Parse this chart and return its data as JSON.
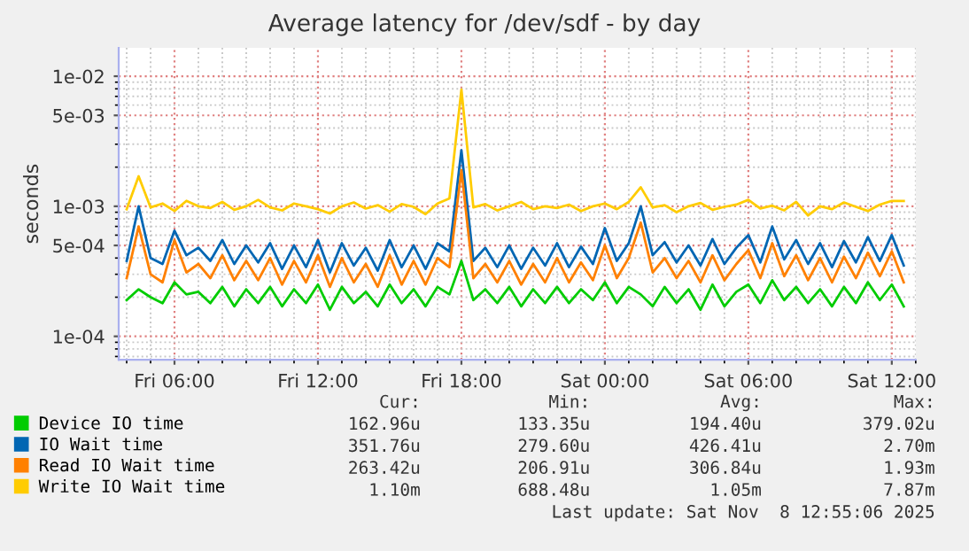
{
  "chart_data": {
    "type": "line",
    "title": "Average latency for /dev/sdf - by day",
    "ylabel": "seconds",
    "log": "y",
    "grid": true,
    "legend": "bottom",
    "marker": "none",
    "line_style": "solid",
    "xlim": [
      "2025-11-07T03:40",
      "2025-11-08T13:00"
    ],
    "xticks": [
      {
        "value": "2025-11-07T06:00",
        "label": "Fri 06:00"
      },
      {
        "value": "2025-11-07T12:00",
        "label": "Fri 12:00"
      },
      {
        "value": "2025-11-07T18:00",
        "label": "Fri 18:00"
      },
      {
        "value": "2025-11-08T00:00",
        "label": "Sat 00:00"
      },
      {
        "value": "2025-11-08T06:00",
        "label": "Sat 06:00"
      },
      {
        "value": "2025-11-08T12:00",
        "label": "Sat 12:00"
      }
    ],
    "ylim": [
      6.6e-05,
      0.0165
    ],
    "yticks": [
      {
        "value": 0.0001,
        "label": "1e-04"
      },
      {
        "value": 0.0005,
        "label": "5e-04"
      },
      {
        "value": 0.001,
        "label": "1e-03"
      },
      {
        "value": 0.005,
        "label": "5e-03"
      },
      {
        "value": 0.01,
        "label": "1e-02"
      }
    ],
    "x": [
      "2025-11-07T04:00",
      "2025-11-07T04:30",
      "2025-11-07T05:00",
      "2025-11-07T05:30",
      "2025-11-07T06:00",
      "2025-11-07T06:30",
      "2025-11-07T07:00",
      "2025-11-07T07:30",
      "2025-11-07T08:00",
      "2025-11-07T08:30",
      "2025-11-07T09:00",
      "2025-11-07T09:30",
      "2025-11-07T10:00",
      "2025-11-07T10:30",
      "2025-11-07T11:00",
      "2025-11-07T11:30",
      "2025-11-07T12:00",
      "2025-11-07T12:30",
      "2025-11-07T13:00",
      "2025-11-07T13:30",
      "2025-11-07T14:00",
      "2025-11-07T14:30",
      "2025-11-07T15:00",
      "2025-11-07T15:30",
      "2025-11-07T16:00",
      "2025-11-07T16:30",
      "2025-11-07T17:00",
      "2025-11-07T17:30",
      "2025-11-07T18:00",
      "2025-11-07T18:30",
      "2025-11-07T19:00",
      "2025-11-07T19:30",
      "2025-11-07T20:00",
      "2025-11-07T20:30",
      "2025-11-07T21:00",
      "2025-11-07T21:30",
      "2025-11-07T22:00",
      "2025-11-07T22:30",
      "2025-11-07T23:00",
      "2025-11-07T23:30",
      "2025-11-08T00:00",
      "2025-11-08T00:30",
      "2025-11-08T01:00",
      "2025-11-08T01:30",
      "2025-11-08T02:00",
      "2025-11-08T02:30",
      "2025-11-08T03:00",
      "2025-11-08T03:30",
      "2025-11-08T04:00",
      "2025-11-08T04:30",
      "2025-11-08T05:00",
      "2025-11-08T05:30",
      "2025-11-08T06:00",
      "2025-11-08T06:30",
      "2025-11-08T07:00",
      "2025-11-08T07:30",
      "2025-11-08T08:00",
      "2025-11-08T08:30",
      "2025-11-08T09:00",
      "2025-11-08T09:30",
      "2025-11-08T10:00",
      "2025-11-08T10:30",
      "2025-11-08T11:00",
      "2025-11-08T11:30",
      "2025-11-08T12:00",
      "2025-11-08T12:30"
    ],
    "series": [
      {
        "name": "Device IO time",
        "color": "#00cc00",
        "values": [
          0.00019,
          0.00023,
          0.0002,
          0.00018,
          0.00026,
          0.00021,
          0.00022,
          0.00018,
          0.00024,
          0.00017,
          0.00023,
          0.00018,
          0.00024,
          0.00017,
          0.00023,
          0.00018,
          0.00025,
          0.00016,
          0.00024,
          0.00018,
          0.00022,
          0.00017,
          0.00025,
          0.00018,
          0.00023,
          0.00017,
          0.00024,
          0.00021,
          0.00038,
          0.00019,
          0.00023,
          0.00018,
          0.00024,
          0.00017,
          0.00023,
          0.00018,
          0.00024,
          0.00018,
          0.00023,
          0.00019,
          0.00026,
          0.00018,
          0.00024,
          0.00021,
          0.00017,
          0.00024,
          0.00018,
          0.00023,
          0.00016,
          0.00025,
          0.00017,
          0.00022,
          0.00025,
          0.00018,
          0.00027,
          0.00019,
          0.00024,
          0.00018,
          0.00023,
          0.00017,
          0.00024,
          0.00018,
          0.00026,
          0.00019,
          0.00025,
          0.00017
        ]
      },
      {
        "name": "IO Wait time",
        "color": "#0066b3",
        "values": [
          0.00038,
          0.001,
          0.0004,
          0.00036,
          0.00065,
          0.00042,
          0.00048,
          0.00038,
          0.00055,
          0.00036,
          0.0005,
          0.00037,
          0.00052,
          0.00033,
          0.0005,
          0.00034,
          0.00055,
          0.00031,
          0.00052,
          0.00035,
          0.00048,
          0.00032,
          0.00055,
          0.00034,
          0.0005,
          0.00033,
          0.00052,
          0.00045,
          0.0027,
          0.00038,
          0.00048,
          0.00034,
          0.0005,
          0.00033,
          0.00048,
          0.00035,
          0.00052,
          0.00034,
          0.00049,
          0.00036,
          0.00068,
          0.00038,
          0.00052,
          0.001,
          0.00042,
          0.00053,
          0.00037,
          0.0005,
          0.00035,
          0.00056,
          0.00036,
          0.00048,
          0.0006,
          0.00037,
          0.0007,
          0.00039,
          0.00055,
          0.00036,
          0.00052,
          0.00034,
          0.00054,
          0.00037,
          0.00058,
          0.00038,
          0.0006,
          0.00035
        ]
      },
      {
        "name": "Read IO Wait time",
        "color": "#ff8000",
        "values": [
          0.00028,
          0.0007,
          0.0003,
          0.00026,
          0.00055,
          0.00031,
          0.00036,
          0.00028,
          0.00042,
          0.00027,
          0.00038,
          0.00027,
          0.0004,
          0.00025,
          0.00038,
          0.00026,
          0.00042,
          0.00024,
          0.0004,
          0.00026,
          0.00036,
          0.00024,
          0.00042,
          0.00025,
          0.00038,
          0.00025,
          0.0004,
          0.00034,
          0.0019,
          0.00028,
          0.00036,
          0.00026,
          0.00038,
          0.00025,
          0.00036,
          0.00026,
          0.0004,
          0.00026,
          0.00037,
          0.00027,
          0.0005,
          0.00028,
          0.0004,
          0.00075,
          0.00031,
          0.0004,
          0.00028,
          0.00038,
          0.00026,
          0.00042,
          0.00027,
          0.00036,
          0.00046,
          0.00028,
          0.00052,
          0.00029,
          0.00042,
          0.00027,
          0.0004,
          0.00026,
          0.00041,
          0.00028,
          0.00044,
          0.00029,
          0.00045,
          0.00026
        ]
      },
      {
        "name": "Write IO Wait time",
        "color": "#ffcc00",
        "values": [
          0.00095,
          0.0017,
          0.00098,
          0.00105,
          0.00092,
          0.0011,
          0.001,
          0.00097,
          0.00108,
          0.00094,
          0.001,
          0.00112,
          0.00098,
          0.00093,
          0.00105,
          0.001,
          0.00095,
          0.00088,
          0.001,
          0.00107,
          0.00096,
          0.00102,
          0.00091,
          0.00104,
          0.00099,
          0.00087,
          0.00105,
          0.00115,
          0.0079,
          0.00098,
          0.00104,
          0.00093,
          0.001,
          0.00108,
          0.00095,
          0.001,
          0.00097,
          0.00103,
          0.00092,
          0.001,
          0.00105,
          0.00095,
          0.00108,
          0.0014,
          0.00098,
          0.00102,
          0.0009,
          0.001,
          0.00106,
          0.00094,
          0.00099,
          0.00103,
          0.00112,
          0.00096,
          0.00101,
          0.00093,
          0.00108,
          0.00085,
          0.001,
          0.00095,
          0.00107,
          0.00099,
          0.00092,
          0.00103,
          0.0011,
          0.0011
        ]
      }
    ],
    "annotations": [
      "Cur:",
      "Min:",
      "Avg:",
      "Max:",
      "162.96u",
      "133.35u",
      "194.40u",
      "379.02u",
      "351.76u",
      "279.60u",
      "426.41u",
      "2.70m",
      "263.42u",
      "206.91u",
      "306.84u",
      "1.93m",
      "1.10m",
      "688.48u",
      "1.05m",
      "7.87m",
      "Last update: Sat Nov  8 12:55:06 2025"
    ]
  }
}
